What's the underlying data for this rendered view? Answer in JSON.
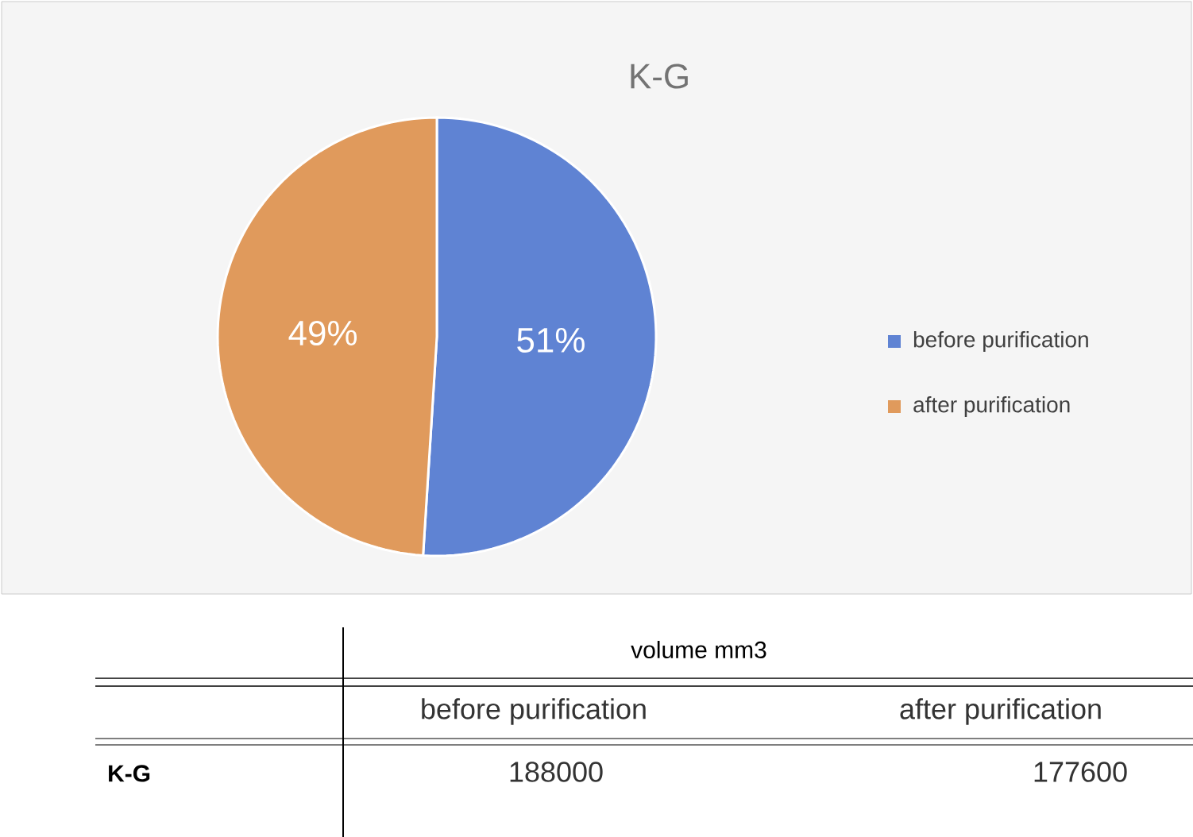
{
  "chart_data": {
    "type": "pie",
    "title": "K-G",
    "categories": [
      "before purification",
      "after purification"
    ],
    "values": [
      51,
      49
    ],
    "colors": [
      "#5f83d3",
      "#e09a5c"
    ],
    "value_labels": [
      "51%",
      "49%"
    ],
    "legend": "right",
    "annotations": [
      "volume mm3",
      "K-G",
      "188000",
      "177600"
    ]
  }
}
